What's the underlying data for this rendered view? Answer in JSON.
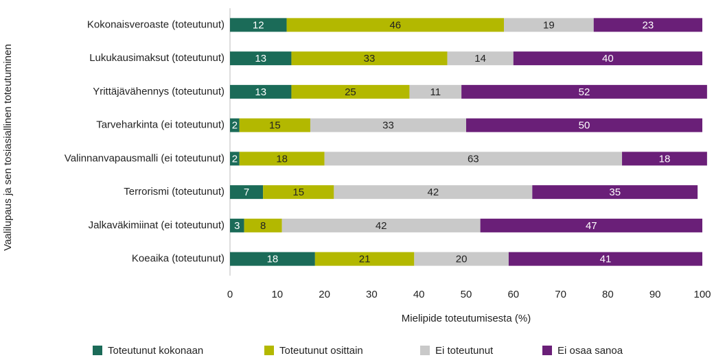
{
  "chart_data": {
    "type": "stacked-bar-horizontal",
    "categories": [
      "Kokonaisveroaste (toteutunut)",
      "Lukukausimaksut (toteutunut)",
      "Yrittäjävähennys (toteutunut)",
      "Tarveharkinta (ei toteutunut)",
      "Valinnanvapausmalli (ei toteutunut)",
      "Terrorismi (toteutunut)",
      "Jalkaväkimiinat (ei toteutunut)",
      "Koeaika (toteutunut)"
    ],
    "series": [
      {
        "name": "Toteutunut kokonaan",
        "color": "#1b6b58",
        "values": [
          12,
          13,
          13,
          2,
          2,
          7,
          3,
          18
        ]
      },
      {
        "name": "Toteutunut osittain",
        "color": "#b3b800",
        "values": [
          46,
          33,
          25,
          15,
          18,
          15,
          8,
          21
        ]
      },
      {
        "name": "Ei toteutunut",
        "color": "#c9c9c9",
        "values": [
          19,
          14,
          11,
          33,
          63,
          42,
          42,
          20
        ]
      },
      {
        "name": "Ei osaa sanoa",
        "color": "#6a1f78",
        "values": [
          23,
          40,
          52,
          50,
          18,
          35,
          47,
          41
        ]
      }
    ],
    "xlabel": "Mielipide toteutumisesta (%)",
    "ylabel": "Vaalilupaus ja sen tosiasiallinen toteutuminen",
    "xlim": [
      0,
      100
    ],
    "xticks": [
      0,
      10,
      20,
      30,
      40,
      50,
      60,
      70,
      80,
      90,
      100
    ],
    "grid": false,
    "legend": "bottom"
  }
}
